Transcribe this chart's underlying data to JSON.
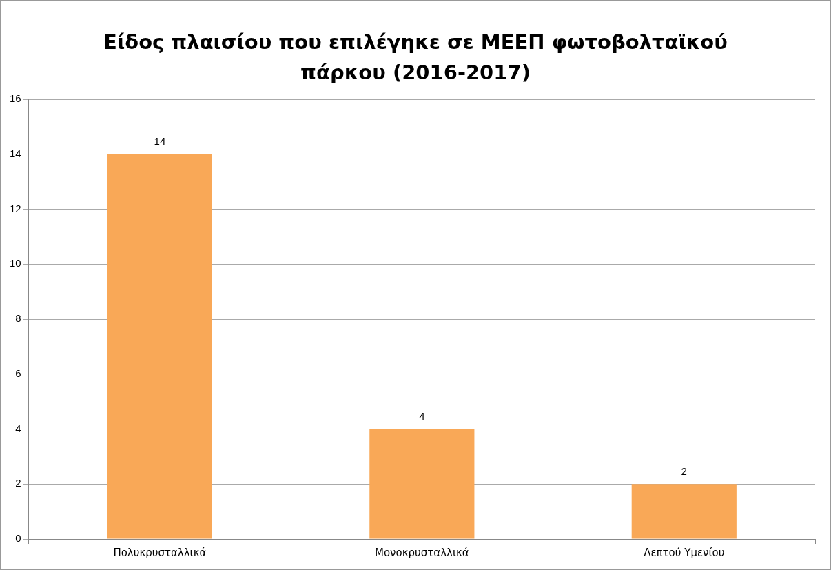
{
  "chart_data": {
    "type": "bar",
    "title": "Είδος πλαισίου που επιλέγηκε σε ΜΕΕΠ φωτοβολταϊκού πάρκου (2016-2017)",
    "categories": [
      "Πολυκρυσταλλικά",
      "Μονοκρυσταλλικά",
      "Λεπτού Υμενίου"
    ],
    "values": [
      14,
      4,
      2
    ],
    "color": "#f9a857",
    "ylim": [
      0,
      16
    ],
    "yticks": [
      0,
      2,
      4,
      6,
      8,
      10,
      12,
      14,
      16
    ],
    "grid": "y",
    "legend": false,
    "data_labels": true
  }
}
